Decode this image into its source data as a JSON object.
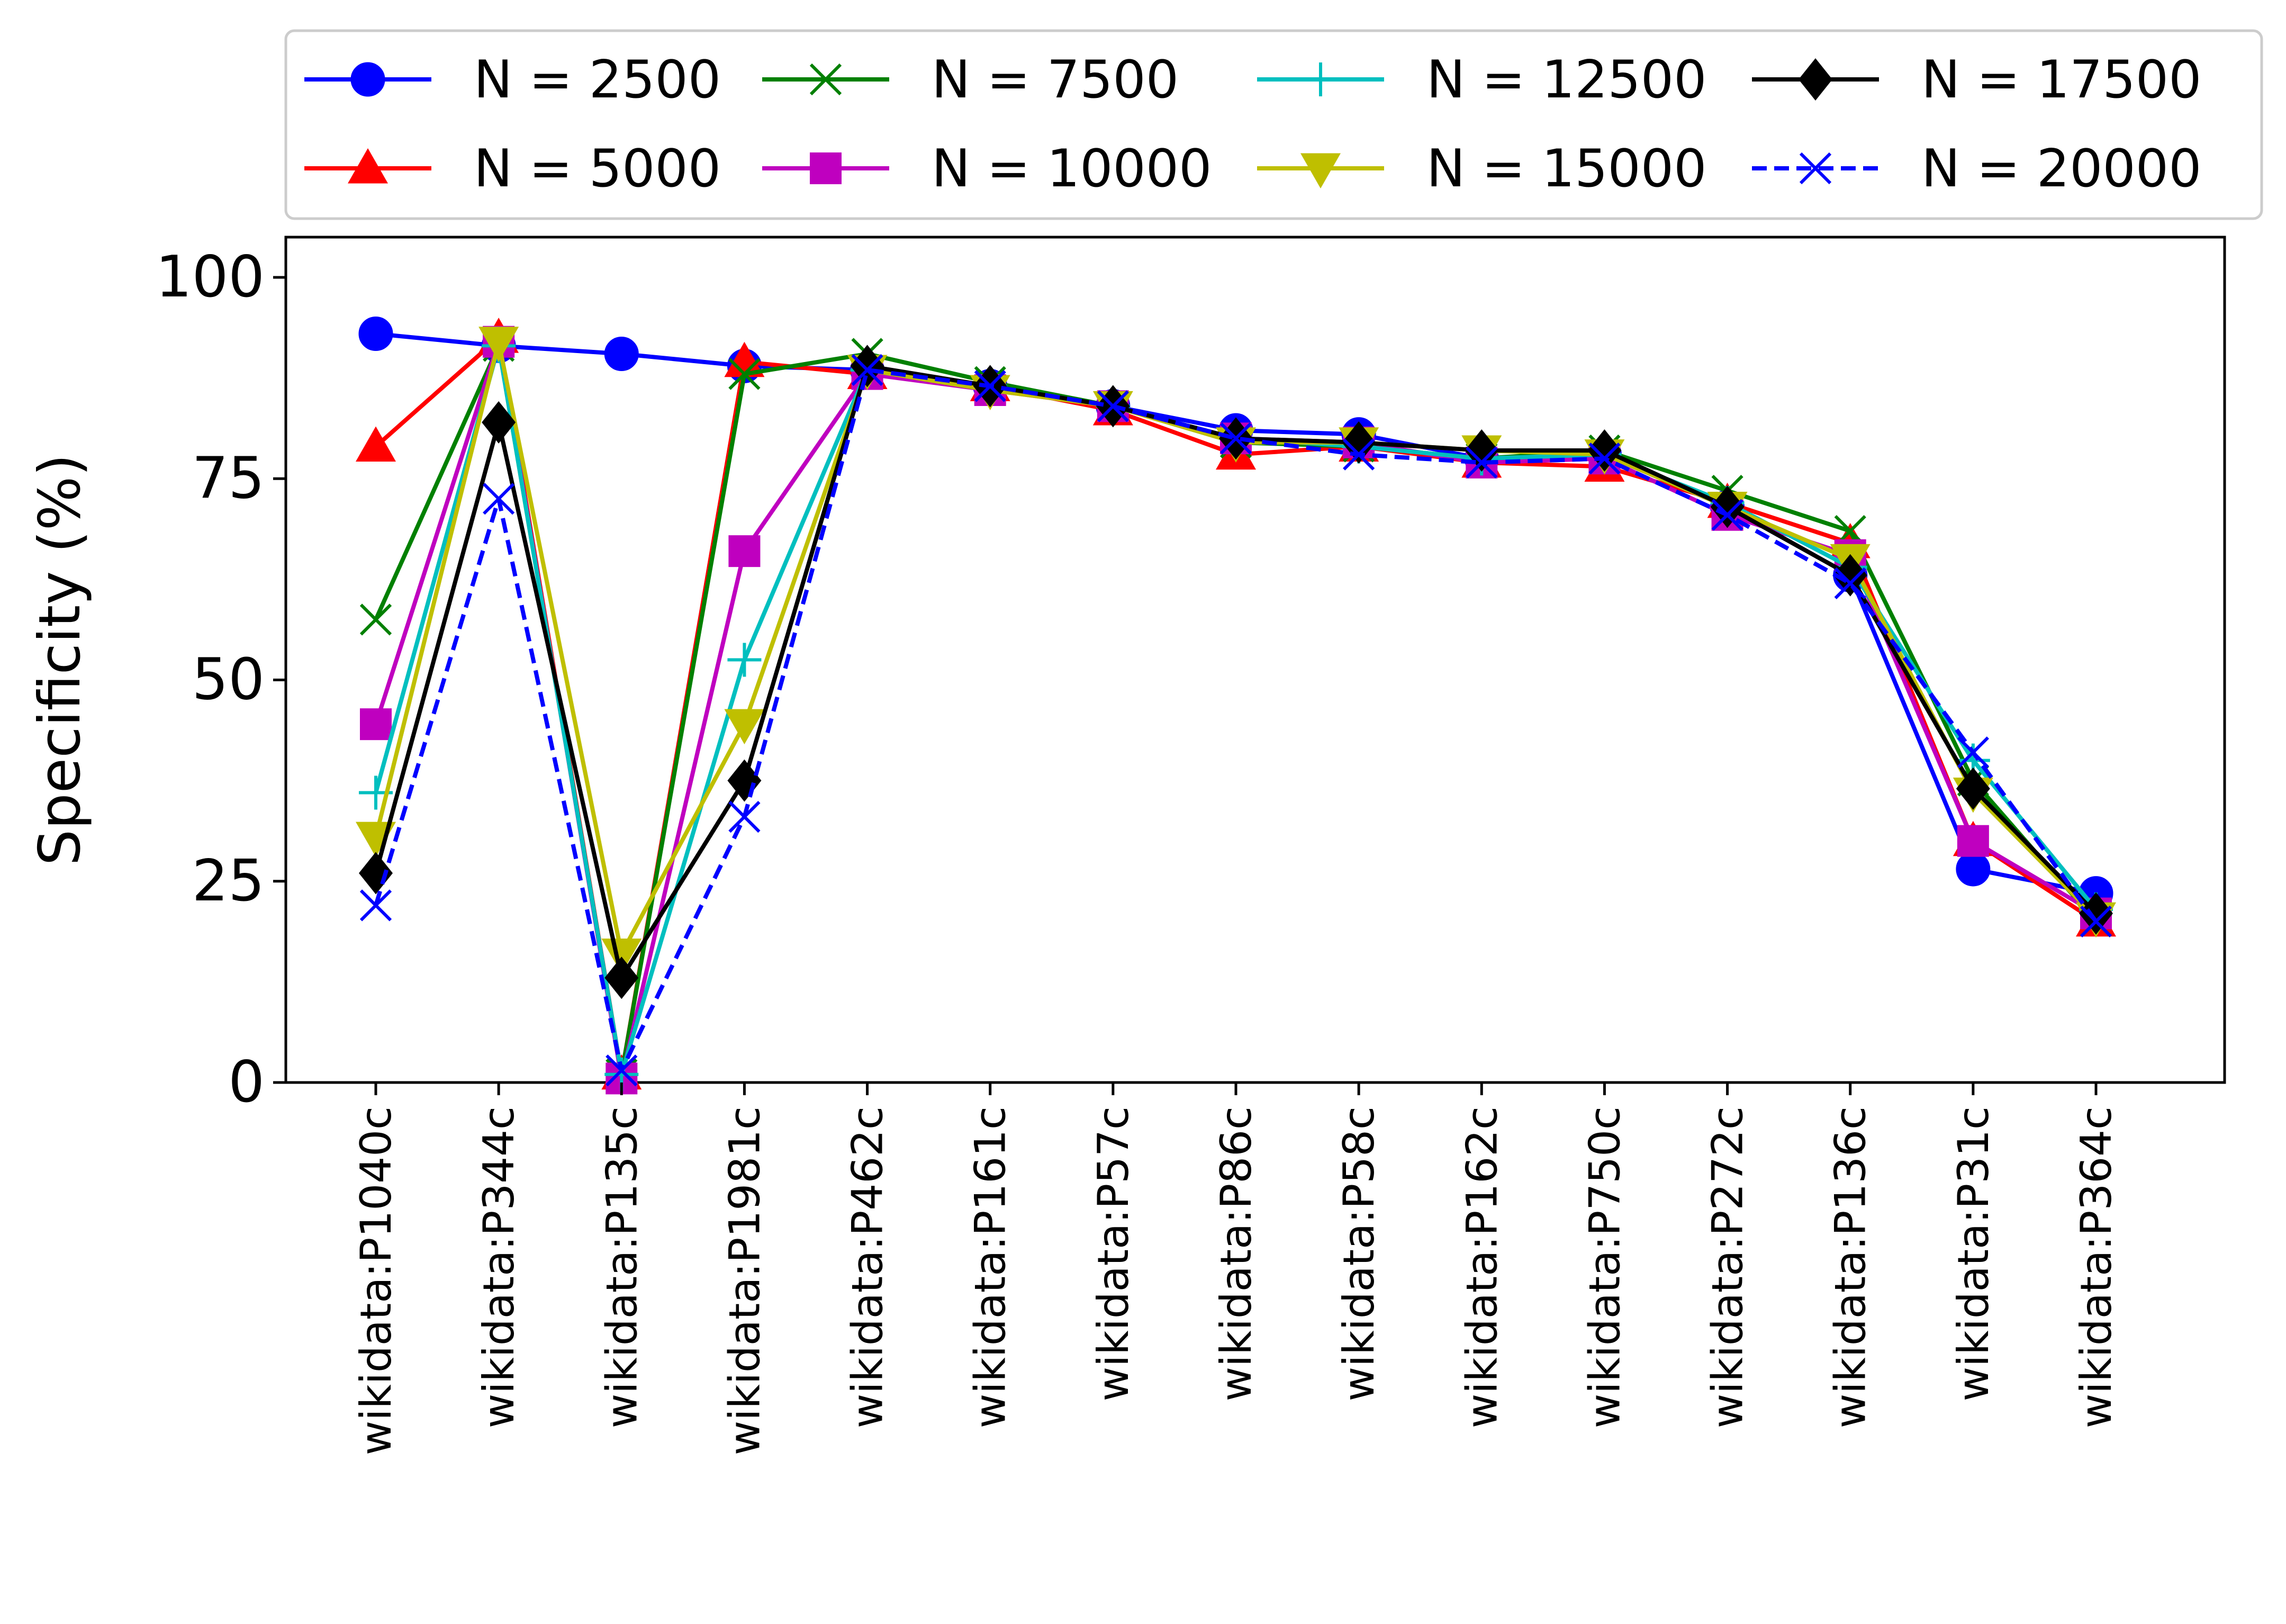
{
  "chart_data": {
    "type": "line",
    "title": "",
    "xlabel": "",
    "ylabel": "Specificity (%)",
    "ylim": [
      0,
      105
    ],
    "yticks": [
      0,
      25,
      50,
      75,
      100
    ],
    "grid": false,
    "legend_position": "top",
    "categories": [
      "wikidata:P1040c",
      "wikidata:P344c",
      "wikidata:P135c",
      "wikidata:P1981c",
      "wikidata:P462c",
      "wikidata:P161c",
      "wikidata:P57c",
      "wikidata:P86c",
      "wikidata:P58c",
      "wikidata:P162c",
      "wikidata:P750c",
      "wikidata:P272c",
      "wikidata:P136c",
      "wikidata:P31c",
      "wikidata:P364c"
    ],
    "series": [
      {
        "name": "N = 2500",
        "color": "#0000ff",
        "marker": "circle",
        "dash": "solid",
        "values": [
          93,
          91.5,
          90.5,
          89,
          88.5,
          86.5,
          84,
          81,
          80.5,
          77.5,
          78,
          71.5,
          63,
          26.5,
          23.5
        ]
      },
      {
        "name": "N = 5000",
        "color": "#ff0000",
        "marker": "triangle-up",
        "dash": "solid",
        "values": [
          79,
          92.5,
          1,
          89.5,
          88,
          86.5,
          83.5,
          78,
          79,
          77,
          76.5,
          72,
          67,
          30,
          20
        ]
      },
      {
        "name": "N = 7500",
        "color": "#008000",
        "marker": "x",
        "dash": "solid",
        "values": [
          57.5,
          91.5,
          1,
          88,
          90.5,
          87,
          84,
          79.5,
          79,
          77.5,
          78.5,
          73.5,
          68.5,
          37.5,
          20
        ]
      },
      {
        "name": "N = 10000",
        "color": "#bf00bf",
        "marker": "square",
        "dash": "solid",
        "values": [
          44.5,
          92,
          0.5,
          66,
          88,
          86,
          84,
          80,
          79.5,
          77,
          77.5,
          70.5,
          65.5,
          30,
          21
        ]
      },
      {
        "name": "N = 12500",
        "color": "#00bfbf",
        "marker": "plus",
        "dash": "solid",
        "values": [
          36,
          91.5,
          1,
          52.5,
          88.5,
          86.5,
          84,
          80,
          79,
          77.5,
          78,
          72,
          64,
          40,
          21.5
        ]
      },
      {
        "name": "N = 15000",
        "color": "#bfbf00",
        "marker": "triangle-down",
        "dash": "solid",
        "values": [
          30.5,
          92,
          16,
          44.5,
          88.5,
          86,
          84,
          79.5,
          79.5,
          78.5,
          78,
          71.5,
          65,
          36,
          20.5
        ]
      },
      {
        "name": "N = 17500",
        "color": "#000000",
        "marker": "diamond",
        "dash": "solid",
        "values": [
          26,
          82,
          13,
          37.5,
          89,
          86.5,
          84,
          80,
          79.5,
          78.5,
          78.5,
          71.5,
          63,
          36.5,
          21
        ]
      },
      {
        "name": "N = 20000",
        "color": "#0000ff",
        "marker": "x",
        "dash": "dashed",
        "values": [
          22,
          72.5,
          1.5,
          33,
          88.5,
          86.5,
          84,
          80,
          78,
          77,
          77.5,
          70.5,
          62,
          41,
          20
        ]
      }
    ]
  }
}
